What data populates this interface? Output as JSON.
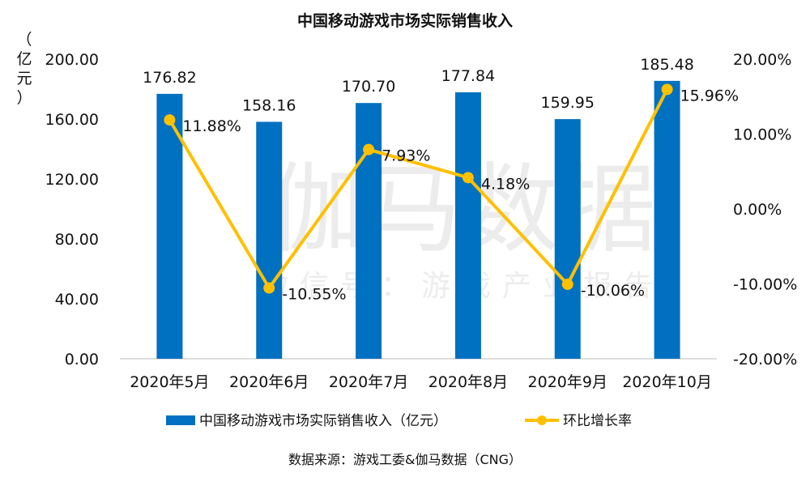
{
  "chart_data": {
    "type": "bar+line",
    "title": "中国移动游戏市场实际销售收入",
    "ylabel": "（亿元）",
    "categories": [
      "2020年5月",
      "2020年6月",
      "2020年7月",
      "2020年8月",
      "2020年9月",
      "2020年10月"
    ],
    "series": [
      {
        "name": "中国移动游戏市场实际销售收入（亿元）",
        "type": "bar",
        "axis": "left",
        "color": "#0070C0",
        "values": [
          176.82,
          158.16,
          170.7,
          177.84,
          159.95,
          185.48
        ],
        "labels": [
          "176.82",
          "158.16",
          "170.70",
          "177.84",
          "159.95",
          "185.48"
        ]
      },
      {
        "name": "环比增长率",
        "type": "line",
        "axis": "right",
        "color": "#FFC000",
        "values": [
          11.88,
          -10.55,
          7.93,
          4.18,
          -10.06,
          15.96
        ],
        "labels": [
          "11.88%",
          "-10.55%",
          "7.93%",
          "4.18%",
          "-10.06%",
          "15.96%"
        ]
      }
    ],
    "ylim_left": [
      0,
      200
    ],
    "yticks_left": [
      "0.00",
      "40.00",
      "80.00",
      "120.00",
      "160.00",
      "200.00"
    ],
    "ylim_right": [
      -20,
      20
    ],
    "yticks_right": [
      "-20.00%",
      "-10.00%",
      "0.00%",
      "10.00%",
      "20.00%"
    ],
    "legend_position": "bottom",
    "grid": false,
    "source": "数据来源：游戏工委&伽马数据（CNG）",
    "watermark": [
      "伽马数据",
      "微信号：游戏产业报告"
    ]
  }
}
